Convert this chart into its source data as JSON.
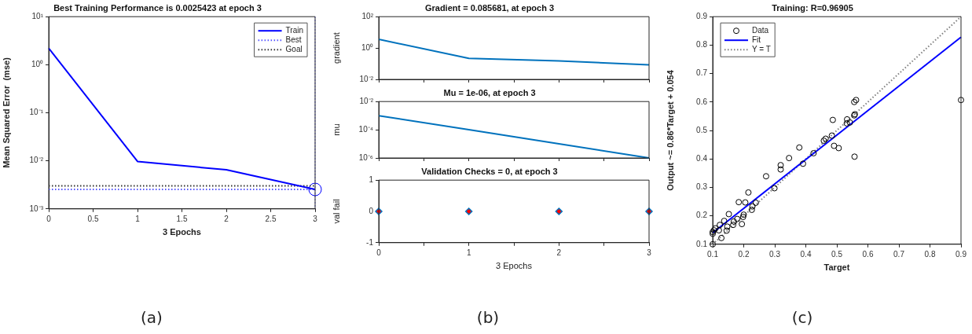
{
  "chart_data": [
    {
      "type": "line",
      "title": "Best Training Performance is 0.0025423 at epoch 3",
      "xlabel": "3 Epochs",
      "ylabel": "Mean Squared Error  (mse)",
      "log": "y",
      "grid": false,
      "legend": "top right",
      "xlim": [
        0,
        3
      ],
      "xticks": [
        0,
        0.5,
        1,
        1.5,
        2,
        2.5,
        3
      ],
      "ylim": [
        0.001,
        10
      ],
      "yticks": [
        {
          "value": 0.001,
          "label": "10⁻³"
        },
        {
          "value": 0.01,
          "label": "10⁻²"
        },
        {
          "value": 0.1,
          "label": "10⁻¹"
        },
        {
          "value": 1,
          "label": "10⁰"
        },
        {
          "value": 10,
          "label": "10¹"
        }
      ],
      "series": [
        {
          "name": "Train",
          "color": "#0000ff",
          "x": [
            0,
            1,
            2,
            3
          ],
          "values": [
            2.2,
            0.0097,
            0.0065,
            0.0025423
          ]
        },
        {
          "name": "Best",
          "color": "#5555ff",
          "line_style": "dotted",
          "x": [
            0,
            3
          ],
          "values": [
            0.0025423,
            0.0025423
          ]
        },
        {
          "name": "Goal",
          "color": "#333333",
          "line_style": "dotted",
          "x": [
            0,
            3
          ],
          "values": [
            0.003,
            0.003
          ]
        },
        {
          "type": "scatter",
          "color": "#0000ff",
          "marker": "circle",
          "x": [
            3
          ],
          "values": [
            0.0025423
          ]
        }
      ],
      "ref_lines": [
        {
          "axis": "x",
          "value": 3,
          "color": "#5555ff",
          "line_style": "dotted"
        }
      ],
      "annotations": [
        "(a)"
      ]
    },
    {
      "type": "line",
      "title": "Gradient = 0.085681, at epoch 3",
      "ylabel": "gradient",
      "log": "y",
      "grid": false,
      "tick_labels": "y",
      "xlim": [
        0,
        3
      ],
      "xticks": [
        0,
        0.5,
        1,
        1.5,
        2,
        2.5,
        3
      ],
      "ylim": [
        0.01,
        100
      ],
      "yticks": [
        {
          "value": 0.01,
          "label": "10⁻²"
        },
        {
          "value": 1,
          "label": "10⁰"
        },
        {
          "value": 100,
          "label": "10²"
        }
      ],
      "series": [
        {
          "color": "#0072bd",
          "x": [
            0,
            1,
            2,
            3
          ],
          "values": [
            3.6,
            0.22,
            0.15,
            0.085681
          ]
        }
      ]
    },
    {
      "type": "line",
      "title": "Mu = 1e-06, at epoch 3",
      "ylabel": "mu",
      "log": "y",
      "grid": false,
      "tick_labels": "y",
      "xlim": [
        0,
        3
      ],
      "xticks": [
        0,
        0.5,
        1,
        1.5,
        2,
        2.5,
        3
      ],
      "ylim": [
        1e-06,
        0.01
      ],
      "yticks": [
        {
          "value": 1e-06,
          "label": "10⁻⁶"
        },
        {
          "value": 0.0001,
          "label": "10⁻⁴"
        },
        {
          "value": 0.01,
          "label": "10⁻²"
        }
      ],
      "series": [
        {
          "color": "#0072bd",
          "x": [
            0,
            1,
            2,
            3
          ],
          "values": [
            0.001,
            0.0001,
            1e-05,
            1e-06
          ]
        }
      ]
    },
    {
      "type": "scatter",
      "title": "Validation Checks = 0, at epoch 3",
      "xlabel": "3 Epochs",
      "ylabel": "val fail",
      "grid": false,
      "marker": "diamond",
      "xlim": [
        0,
        3
      ],
      "xticks": [
        0,
        {
          "value": 0.5,
          "label": null
        },
        1,
        {
          "value": 1.5,
          "label": null
        },
        2,
        {
          "value": 2.5,
          "label": null
        },
        3
      ],
      "ylim": [
        -1,
        1
      ],
      "yticks": [
        -1,
        0,
        1
      ],
      "series": [
        {
          "color": "#ff0000",
          "x": [
            0,
            1,
            2,
            3
          ],
          "values": [
            0,
            0,
            0,
            0
          ]
        }
      ],
      "annotations": [
        "(b)"
      ]
    },
    {
      "type": "scatter",
      "title": "Training: R=0.96905",
      "xlabel": "Target",
      "ylabel": "Output ~= 0.86*Target + 0.054",
      "grid": false,
      "legend": "top left",
      "xlim": [
        0.1,
        0.9
      ],
      "xticks": [
        0.1,
        0.2,
        0.3,
        0.4,
        0.5,
        0.6,
        0.7,
        0.8,
        0.9
      ],
      "ylim": [
        0.1,
        0.9
      ],
      "yticks": [
        0.1,
        0.2,
        0.3,
        0.4,
        0.5,
        0.6,
        0.7,
        0.8,
        0.9
      ],
      "series": [
        {
          "name": "Data",
          "color": "#000000",
          "marker": "circle",
          "x": [
            0.1,
            0.1,
            0.1,
            0.104,
            0.109,
            0.12,
            0.123,
            0.128,
            0.137,
            0.145,
            0.147,
            0.152,
            0.166,
            0.168,
            0.179,
            0.184,
            0.194,
            0.198,
            0.2,
            0.205,
            0.215,
            0.226,
            0.228,
            0.239,
            0.272,
            0.299,
            0.319,
            0.319,
            0.346,
            0.379,
            0.391,
            0.425,
            0.458,
            0.464,
            0.484,
            0.487,
            0.491,
            0.506,
            0.533,
            0.532,
            0.542,
            0.556,
            0.558,
            0.556,
            0.562,
            0.557,
            0.9
          ],
          "values": [
            0.1,
            0.137,
            0.143,
            0.149,
            0.156,
            0.149,
            0.168,
            0.122,
            0.182,
            0.148,
            0.162,
            0.206,
            0.168,
            0.18,
            0.189,
            0.248,
            0.171,
            0.196,
            0.204,
            0.247,
            0.282,
            0.221,
            0.233,
            0.246,
            0.339,
            0.297,
            0.378,
            0.363,
            0.403,
            0.44,
            0.383,
            0.42,
            0.464,
            0.471,
            0.482,
            0.537,
            0.446,
            0.438,
            0.539,
            0.525,
            0.528,
            0.553,
            0.557,
            0.6,
            0.607,
            0.408,
            0.607
          ]
        },
        {
          "name": "Fit",
          "type": "line",
          "color": "#0000ff",
          "x": [
            0.1,
            0.9
          ],
          "values": [
            0.14,
            0.828
          ]
        },
        {
          "name": "Y = T",
          "type": "line",
          "color": "#808080",
          "line_style": "dotted",
          "x": [
            0.1,
            0.9
          ],
          "values": [
            0.1,
            0.9
          ]
        }
      ],
      "annotations": [
        "(c)"
      ]
    }
  ]
}
